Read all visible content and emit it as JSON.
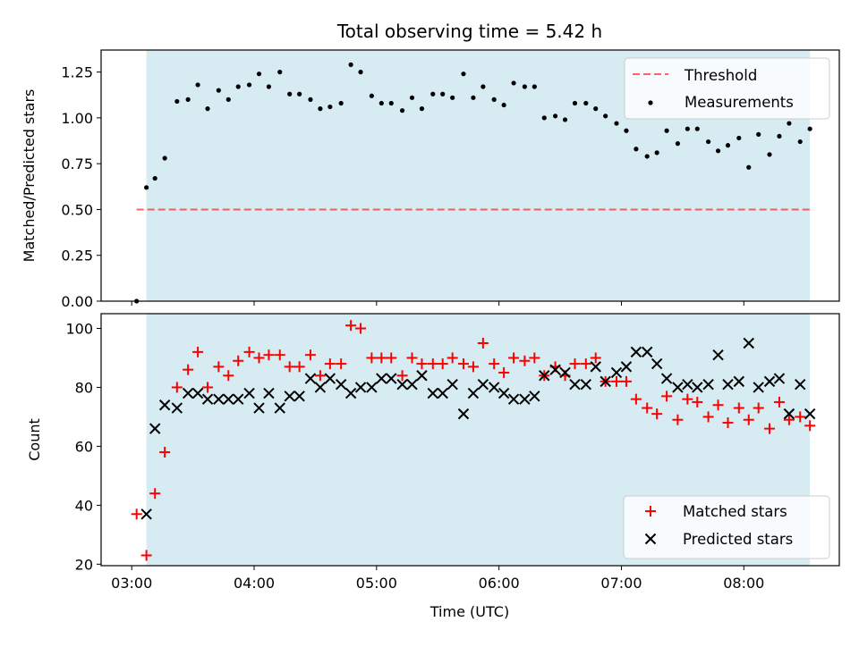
{
  "figure": {
    "title": "Total observing time = 5.42 h"
  },
  "colors": {
    "shade": "#add8e6",
    "threshold": "#ff0000",
    "measurements": "#000000",
    "matched": "#ff0000",
    "predicted": "#000000"
  },
  "chart_data": [
    {
      "type": "scatter",
      "name": "ratio-panel",
      "ylabel": "Matched/Predicted stars",
      "xlabel": "",
      "xlim": [
        2.75,
        8.78
      ],
      "ylim": [
        0,
        1.37
      ],
      "grid": false,
      "legend_position": "top-right",
      "yticks": [
        0,
        0.25,
        0.5,
        0.75,
        1.0,
        1.25
      ],
      "ytick_labels": [
        "0.00",
        "0.25",
        "0.50",
        "0.75",
        "1.00",
        "1.25"
      ],
      "shaded_interval": [
        3.12,
        8.54
      ],
      "threshold": {
        "name": "Threshold",
        "y": 0.5,
        "x_range": [
          3.04,
          8.54
        ]
      },
      "series": [
        {
          "name": "Measurements",
          "x": [
            3.04,
            3.12,
            3.19,
            3.27,
            3.37,
            3.46,
            3.54,
            3.62,
            3.71,
            3.79,
            3.87,
            3.96,
            4.04,
            4.12,
            4.21,
            4.29,
            4.37,
            4.46,
            4.54,
            4.62,
            4.71,
            4.79,
            4.87,
            4.96,
            5.04,
            5.12,
            5.21,
            5.29,
            5.37,
            5.46,
            5.54,
            5.62,
            5.71,
            5.79,
            5.87,
            5.96,
            6.04,
            6.12,
            6.21,
            6.29,
            6.37,
            6.46,
            6.54,
            6.62,
            6.71,
            6.79,
            6.87,
            6.96,
            7.04,
            7.12,
            7.21,
            7.29,
            7.37,
            7.46,
            7.54,
            7.62,
            7.71,
            7.79,
            7.87,
            7.96,
            8.04,
            8.12,
            8.21,
            8.29,
            8.37,
            8.46,
            8.54
          ],
          "y": [
            0.0,
            0.62,
            0.67,
            0.78,
            1.09,
            1.1,
            1.18,
            1.05,
            1.15,
            1.1,
            1.17,
            1.18,
            1.24,
            1.17,
            1.25,
            1.13,
            1.13,
            1.1,
            1.05,
            1.06,
            1.08,
            1.29,
            1.25,
            1.12,
            1.08,
            1.08,
            1.04,
            1.11,
            1.05,
            1.13,
            1.13,
            1.11,
            1.24,
            1.11,
            1.17,
            1.1,
            1.07,
            1.19,
            1.17,
            1.17,
            1.0,
            1.01,
            0.99,
            1.08,
            1.08,
            1.05,
            1.01,
            0.97,
            0.93,
            0.83,
            0.79,
            0.81,
            0.93,
            0.86,
            0.94,
            0.94,
            0.87,
            0.82,
            0.85,
            0.89,
            0.73,
            0.91,
            0.8,
            0.9,
            0.97,
            0.87,
            0.94
          ]
        }
      ]
    },
    {
      "type": "scatter",
      "name": "count-panel",
      "ylabel": "Count",
      "xlabel": "Time (UTC)",
      "xlim": [
        2.75,
        8.78
      ],
      "ylim": [
        19.5,
        105
      ],
      "grid": false,
      "legend_position": "bottom-right",
      "yticks": [
        20,
        40,
        60,
        80,
        100
      ],
      "ytick_labels": [
        "20",
        "40",
        "60",
        "80",
        "100"
      ],
      "xticks": [
        3,
        4,
        5,
        6,
        7,
        8
      ],
      "xtick_labels": [
        "03:00",
        "04:00",
        "05:00",
        "06:00",
        "07:00",
        "08:00"
      ],
      "shaded_interval": [
        3.12,
        8.54
      ],
      "series": [
        {
          "name": "Matched stars",
          "marker": "plus",
          "x": [
            3.04,
            3.12,
            3.19,
            3.27,
            3.37,
            3.46,
            3.54,
            3.62,
            3.71,
            3.79,
            3.87,
            3.96,
            4.04,
            4.12,
            4.21,
            4.29,
            4.37,
            4.46,
            4.54,
            4.62,
            4.71,
            4.79,
            4.87,
            4.96,
            5.04,
            5.12,
            5.21,
            5.29,
            5.37,
            5.46,
            5.54,
            5.62,
            5.71,
            5.79,
            5.87,
            5.96,
            6.04,
            6.12,
            6.21,
            6.29,
            6.37,
            6.46,
            6.54,
            6.62,
            6.71,
            6.79,
            6.87,
            6.96,
            7.04,
            7.12,
            7.21,
            7.29,
            7.37,
            7.46,
            7.54,
            7.62,
            7.71,
            7.79,
            7.87,
            7.96,
            8.04,
            8.12,
            8.21,
            8.29,
            8.37,
            8.46,
            8.54
          ],
          "y": [
            37,
            23,
            44,
            58,
            80,
            86,
            92,
            80,
            87,
            84,
            89,
            92,
            90,
            91,
            91,
            87,
            87,
            91,
            84,
            88,
            88,
            101,
            100,
            90,
            90,
            90,
            84,
            90,
            88,
            88,
            88,
            90,
            88,
            87,
            95,
            88,
            85,
            90,
            89,
            90,
            84,
            87,
            84,
            88,
            88,
            90,
            82,
            82,
            82,
            76,
            73,
            71,
            77,
            69,
            76,
            75,
            70,
            74,
            68,
            73,
            69,
            73,
            66,
            75,
            69,
            70,
            67
          ]
        },
        {
          "name": "Predicted stars",
          "marker": "cross",
          "x": [
            3.12,
            3.19,
            3.27,
            3.37,
            3.46,
            3.54,
            3.62,
            3.71,
            3.79,
            3.87,
            3.96,
            4.04,
            4.12,
            4.21,
            4.29,
            4.37,
            4.46,
            4.54,
            4.62,
            4.71,
            4.79,
            4.87,
            4.96,
            5.04,
            5.12,
            5.21,
            5.29,
            5.37,
            5.46,
            5.54,
            5.62,
            5.71,
            5.79,
            5.87,
            5.96,
            6.04,
            6.12,
            6.21,
            6.29,
            6.37,
            6.46,
            6.54,
            6.62,
            6.71,
            6.79,
            6.87,
            6.96,
            7.04,
            7.12,
            7.21,
            7.29,
            7.37,
            7.46,
            7.54,
            7.62,
            7.71,
            7.79,
            7.87,
            7.96,
            8.04,
            8.12,
            8.21,
            8.29,
            8.37,
            8.46,
            8.54
          ],
          "y": [
            37,
            66,
            74,
            73,
            78,
            78,
            76,
            76,
            76,
            76,
            78,
            73,
            78,
            73,
            77,
            77,
            83,
            80,
            83,
            81,
            78,
            80,
            80,
            83,
            83,
            81,
            81,
            84,
            78,
            78,
            81,
            71,
            78,
            81,
            80,
            78,
            76,
            76,
            77,
            84,
            86,
            85,
            81,
            81,
            87,
            82,
            85,
            87,
            92,
            92,
            88,
            83,
            80,
            81,
            80,
            81,
            91,
            81,
            82,
            95,
            80,
            82,
            83,
            71,
            81,
            71
          ]
        }
      ]
    }
  ]
}
